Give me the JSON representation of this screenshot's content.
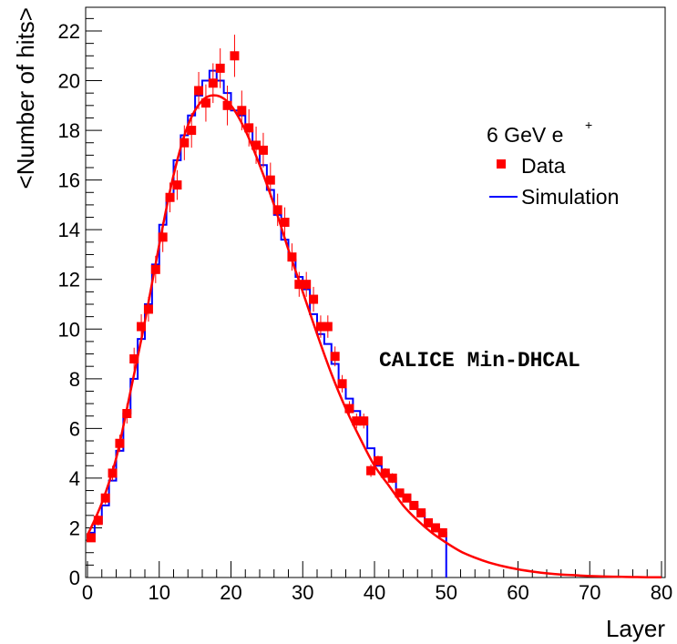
{
  "chart_data": {
    "type": "scatter",
    "xlabel": "Layer",
    "ylabel": "<Number of hits>",
    "xlim": [
      0,
      80
    ],
    "ylim": [
      0,
      23
    ],
    "x_ticks": [
      "0",
      "10",
      "20",
      "30",
      "40",
      "50",
      "60",
      "70",
      "80"
    ],
    "y_ticks": [
      "0",
      "2",
      "4",
      "6",
      "8",
      "10",
      "12",
      "14",
      "16",
      "18",
      "20",
      "22"
    ],
    "grid": false,
    "legend": {
      "placement": "top-right",
      "header": "6 GeV e",
      "header_sup": "+",
      "entries": [
        "Data",
        "Simulation"
      ]
    },
    "annotation": "CALICE Min-DHCAL",
    "colors": {
      "data": "#ff0000",
      "simulation": "#0000ff",
      "fit": "#ff0000"
    },
    "series": [
      {
        "name": "Data",
        "style": "markers_with_errorbars",
        "x": [
          0,
          1,
          2,
          3,
          4,
          5,
          6,
          7,
          8,
          9,
          10,
          11,
          12,
          13,
          14,
          15,
          16,
          17,
          18,
          19,
          20,
          21,
          22,
          23,
          24,
          25,
          26,
          27,
          28,
          29,
          30,
          31,
          32,
          33,
          34,
          35,
          36,
          37,
          38,
          39,
          40,
          41,
          42,
          43,
          44,
          45,
          46,
          47,
          48,
          49
        ],
        "y": [
          1.6,
          2.3,
          3.2,
          4.2,
          5.4,
          6.6,
          8.8,
          10.1,
          10.8,
          12.4,
          13.7,
          15.3,
          15.8,
          17.5,
          18.0,
          19.6,
          19.1,
          19.9,
          20.5,
          19.0,
          21.0,
          18.8,
          18.1,
          17.4,
          17.2,
          16.0,
          14.8,
          14.3,
          12.9,
          11.8,
          11.8,
          11.2,
          10.1,
          10.1,
          8.9,
          7.8,
          6.8,
          6.3,
          6.3,
          4.3,
          4.7,
          4.2,
          4.0,
          3.4,
          3.2,
          2.9,
          2.6,
          2.2,
          2.0,
          1.8
        ],
        "yerr": [
          0.15,
          0.2,
          0.25,
          0.3,
          0.35,
          0.4,
          0.45,
          0.5,
          0.5,
          0.55,
          0.6,
          0.6,
          0.6,
          0.7,
          0.7,
          0.75,
          0.75,
          0.8,
          0.8,
          0.8,
          0.85,
          0.8,
          0.75,
          0.75,
          0.7,
          0.7,
          0.65,
          0.6,
          0.55,
          0.5,
          0.5,
          0.5,
          0.45,
          0.45,
          0.4,
          0.35,
          0.3,
          0.3,
          0.3,
          0.25,
          0.2,
          0.2,
          0.2,
          0.15,
          0.15,
          0.15,
          0.12,
          0.1,
          0.1,
          0.1
        ]
      },
      {
        "name": "Simulation",
        "style": "step",
        "x": [
          0,
          1,
          2,
          3,
          4,
          5,
          6,
          7,
          8,
          9,
          10,
          11,
          12,
          13,
          14,
          15,
          16,
          17,
          18,
          19,
          20,
          21,
          22,
          23,
          24,
          25,
          26,
          27,
          28,
          29,
          30,
          31,
          32,
          33,
          34,
          35,
          36,
          37,
          38,
          39,
          40,
          41,
          42,
          43,
          44,
          45,
          46,
          47,
          48,
          49
        ],
        "y": [
          1.8,
          2.2,
          2.9,
          3.9,
          5.1,
          6.6,
          8.0,
          9.6,
          11.0,
          12.6,
          14.2,
          15.3,
          16.8,
          17.8,
          18.6,
          19.4,
          20.0,
          20.4,
          20.0,
          19.5,
          18.8,
          18.6,
          18.0,
          17.5,
          16.6,
          15.6,
          14.6,
          13.6,
          12.8,
          12.1,
          11.6,
          10.6,
          9.8,
          9.4,
          8.6,
          7.9,
          7.2,
          6.7,
          6.4,
          5.2,
          4.5,
          4.2,
          4.0,
          3.5,
          3.3,
          2.9,
          2.6,
          2.3,
          2.0,
          1.8
        ]
      },
      {
        "name": "Fit",
        "style": "line",
        "x": [
          0,
          2,
          4,
          6,
          8,
          10,
          12,
          14,
          16,
          18,
          20,
          22,
          24,
          26,
          28,
          30,
          32,
          34,
          36,
          38,
          40,
          42,
          44,
          46,
          48,
          50,
          52,
          54,
          56,
          58,
          60,
          62,
          64,
          66,
          68,
          70,
          72,
          74,
          76,
          78,
          80
        ],
        "y": [
          1.7,
          3.0,
          4.8,
          7.5,
          10.3,
          13.4,
          16.2,
          18.2,
          19.2,
          19.4,
          19.0,
          18.0,
          16.6,
          15.0,
          13.2,
          11.5,
          9.8,
          8.2,
          6.8,
          5.6,
          4.5,
          3.7,
          2.9,
          2.3,
          1.8,
          1.4,
          1.05,
          0.8,
          0.6,
          0.45,
          0.33,
          0.24,
          0.17,
          0.12,
          0.09,
          0.06,
          0.04,
          0.03,
          0.02,
          0.01,
          0.01
        ]
      }
    ]
  }
}
